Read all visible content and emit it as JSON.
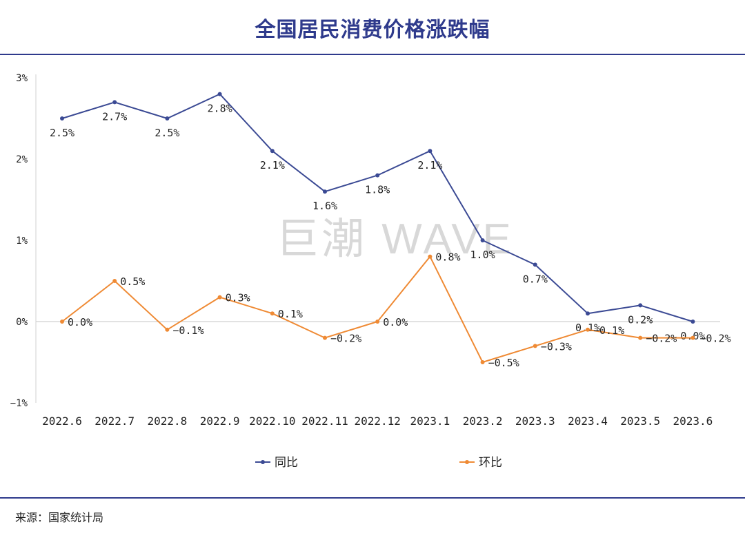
{
  "header": {
    "title": "全国居民消费价格涨跌幅"
  },
  "watermark": "巨潮 WAVE",
  "footer": {
    "source": "来源：国家统计局"
  },
  "colors": {
    "accent": "#2e3a8c",
    "series_yoy": "#3b4a94",
    "series_mom": "#ef8a34",
    "zero_line": "#d0d0d0"
  },
  "chart_data": {
    "type": "line",
    "title": "全国居民消费价格涨跌幅",
    "categories": [
      "2022.6",
      "2022.7",
      "2022.8",
      "2022.9",
      "2022.10",
      "2022.11",
      "2022.12",
      "2023.1",
      "2023.2",
      "2023.3",
      "2023.4",
      "2023.5",
      "2023.6"
    ],
    "ylim": [
      -1,
      3
    ],
    "yticks": [
      3,
      2,
      1,
      0,
      -1
    ],
    "ytick_labels": [
      "3%",
      "2%",
      "1%",
      "0%",
      "−1%"
    ],
    "legend_position": "bottom-center",
    "series": [
      {
        "name": "同比",
        "values": [
          2.5,
          2.7,
          2.5,
          2.8,
          2.1,
          1.6,
          1.8,
          2.1,
          1.0,
          0.7,
          0.1,
          0.2,
          0.0
        ],
        "labels": [
          "2.5%",
          "2.7%",
          "2.5%",
          "2.8%",
          "2.1%",
          "1.6%",
          "1.8%",
          "2.1%",
          "1.0%",
          "0.7%",
          "0.1%",
          "0.2%",
          "0.0%"
        ]
      },
      {
        "name": "环比",
        "values": [
          0.0,
          0.5,
          -0.1,
          0.3,
          0.1,
          -0.2,
          0.0,
          0.8,
          -0.5,
          -0.3,
          -0.1,
          -0.2,
          -0.2
        ],
        "labels": [
          "0.0%",
          "0.5%",
          "−0.1%",
          "0.3%",
          "0.1%",
          "−0.2%",
          "0.0%",
          "0.8%",
          "−0.5%",
          "−0.3%",
          "−0.1%",
          "−0.2%",
          "−0.2%"
        ]
      }
    ]
  }
}
